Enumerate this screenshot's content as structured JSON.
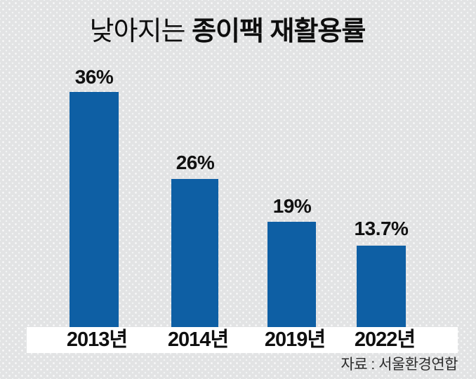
{
  "title": {
    "prefix": "낮아지는 ",
    "emphasis": "종이팩 재활용률"
  },
  "source": "자료 : 서울환경연합",
  "colors": {
    "bar": "#0e5fa4",
    "background": "#e2e3e4",
    "background_dots": "#f9f9f9",
    "axis_strip": "#ffffff",
    "title_text": "#0e0e0e",
    "source_text": "#2e2e2e"
  },
  "chart_data": {
    "type": "bar",
    "title": "낮아지는 종이팩 재활용률",
    "categories": [
      "2013년",
      "2014년",
      "2019년",
      "2022년"
    ],
    "values": [
      36,
      26,
      19,
      13.7
    ],
    "value_labels": [
      "36%",
      "26%",
      "19%",
      "13.7%"
    ],
    "unit": "%",
    "xlabel": "",
    "ylabel": "",
    "ylim": [
      0,
      40
    ],
    "grid": false,
    "legend": false,
    "bar_color": "#0e5fa4",
    "source": "자료 : 서울환경연합"
  }
}
